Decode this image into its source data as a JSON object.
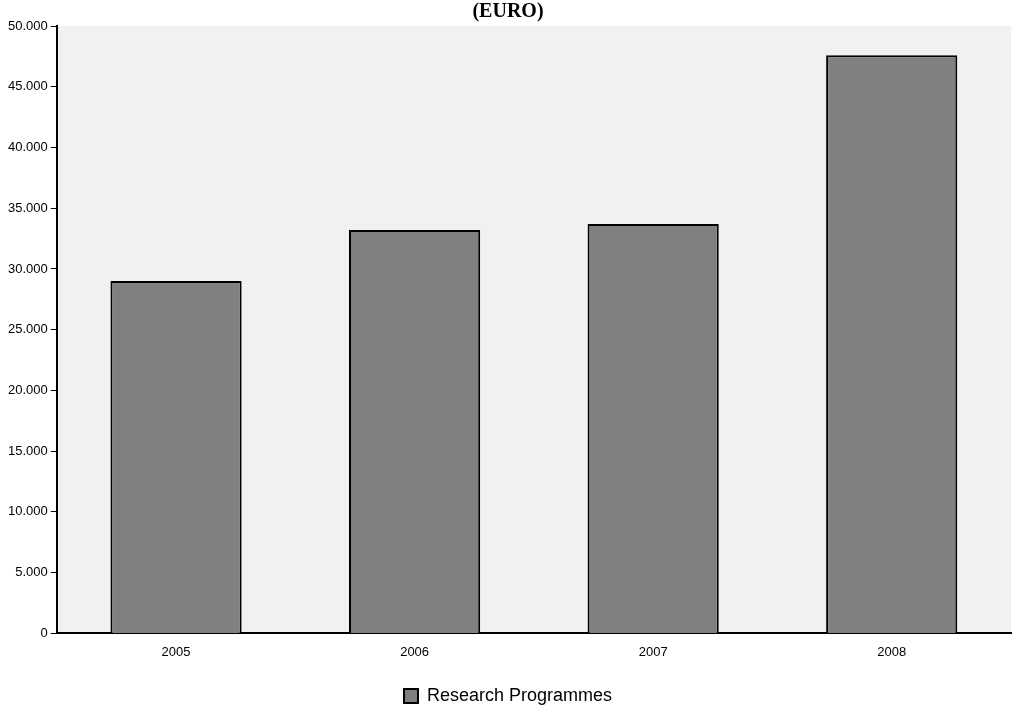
{
  "chart_data": {
    "type": "bar",
    "title": "(EURO)",
    "categories": [
      "2005",
      "2006",
      "2007",
      "2008"
    ],
    "series": [
      {
        "name": "Research Programmes",
        "color": "#808080",
        "values": [
          29000,
          33200,
          33700,
          47600
        ]
      }
    ],
    "ylim": [
      0,
      50000
    ],
    "yticks": [
      0,
      {
        "value": 5000,
        "label": "5.000"
      },
      {
        "value": 10000,
        "label": "10.000"
      },
      {
        "value": 15000,
        "label": "15.000"
      },
      {
        "value": 20000,
        "label": "20.000"
      },
      {
        "value": 25000,
        "label": "25.000"
      },
      {
        "value": 30000,
        "label": "30.000"
      },
      {
        "value": 35000,
        "label": "35.000"
      },
      {
        "value": 40000,
        "label": "40.000"
      },
      {
        "value": 45000,
        "label": "45.000"
      },
      {
        "value": 50000,
        "label": "50.000"
      }
    ],
    "grid": false,
    "legend": "bottom"
  }
}
